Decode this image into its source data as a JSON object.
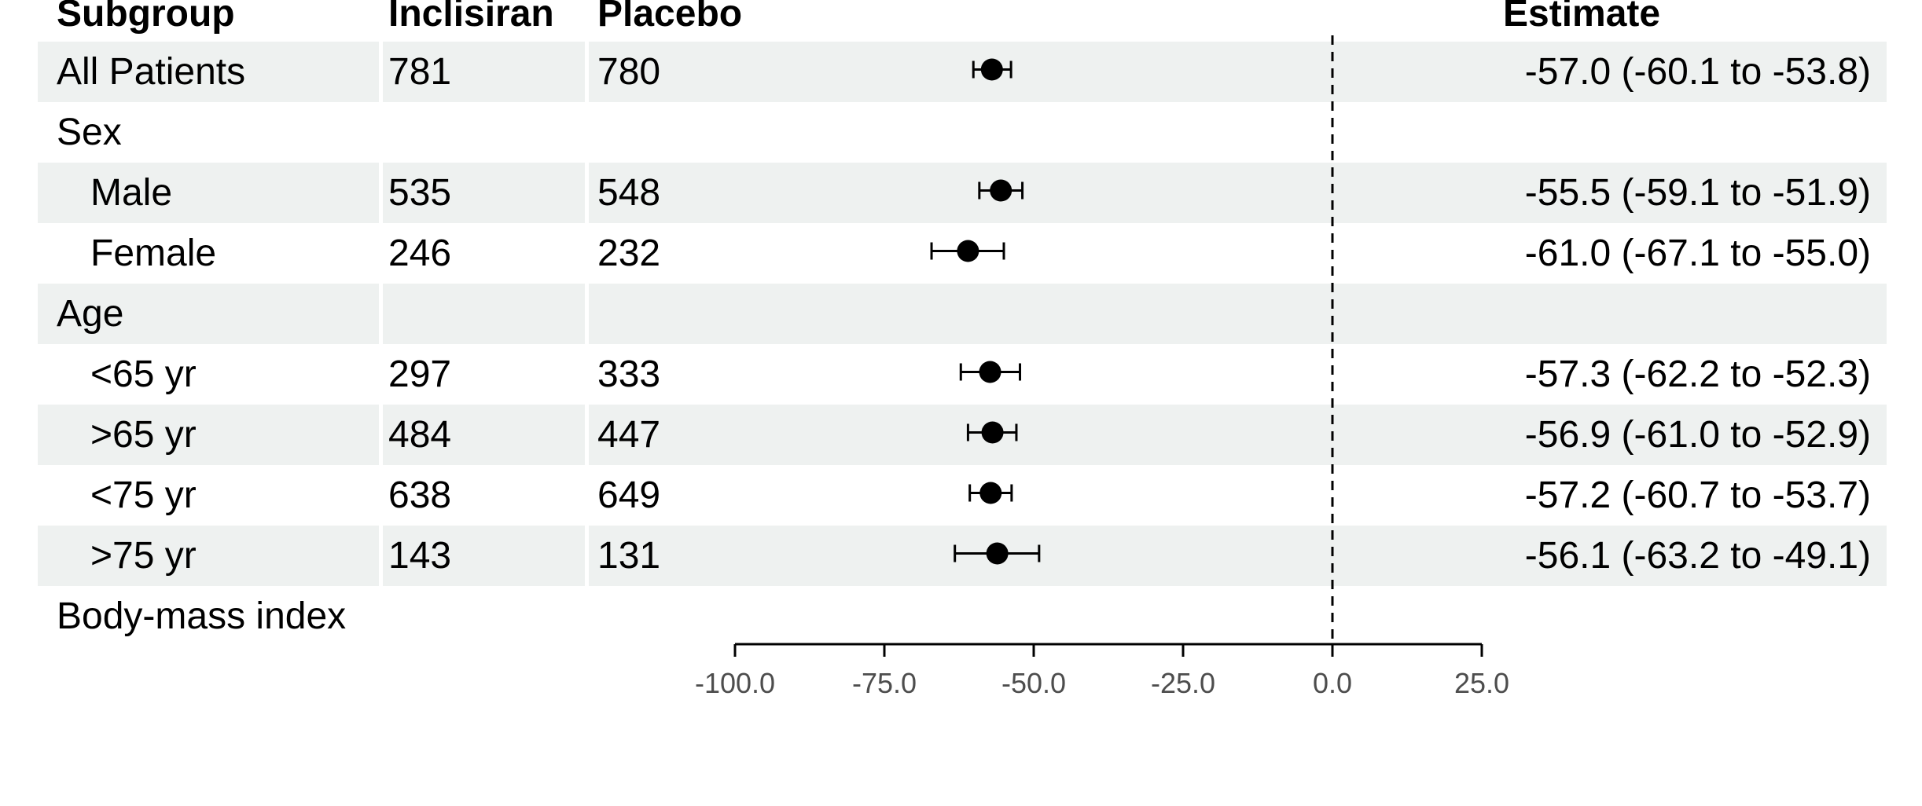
{
  "headers": {
    "subgroup": "Subgroup",
    "inclisiran": "Inclisiran",
    "placebo": "Placebo",
    "estimate": "Estimate"
  },
  "chart_data": {
    "type": "forest",
    "x_axis": {
      "ticks": [
        -100,
        -75,
        -50,
        -25,
        0,
        25
      ],
      "tick_labels": [
        "-100.0",
        "-75.0",
        "-50.0",
        "-25.0",
        "0.0",
        "25.0"
      ],
      "range": [
        -100,
        25
      ],
      "reference_line": 0
    },
    "rows": [
      {
        "label": "All Patients",
        "indent": false,
        "inclisiran": "781",
        "placebo": "780",
        "estimate": -57.0,
        "lower": -60.1,
        "upper": -53.8,
        "estimate_text": "-57.0 (-60.1 to -53.8)",
        "shaded": true
      },
      {
        "label": "Sex",
        "indent": false,
        "inclisiran": "",
        "placebo": "",
        "estimate": null,
        "lower": null,
        "upper": null,
        "estimate_text": "",
        "shaded": false
      },
      {
        "label": "Male",
        "indent": true,
        "inclisiran": "535",
        "placebo": "548",
        "estimate": -55.5,
        "lower": -59.1,
        "upper": -51.9,
        "estimate_text": "-55.5 (-59.1 to -51.9)",
        "shaded": true
      },
      {
        "label": "Female",
        "indent": true,
        "inclisiran": "246",
        "placebo": "232",
        "estimate": -61.0,
        "lower": -67.1,
        "upper": -55.0,
        "estimate_text": "-61.0 (-67.1 to -55.0)",
        "shaded": false
      },
      {
        "label": "Age",
        "indent": false,
        "inclisiran": "",
        "placebo": "",
        "estimate": null,
        "lower": null,
        "upper": null,
        "estimate_text": "",
        "shaded": true
      },
      {
        "label": "<65 yr",
        "indent": true,
        "inclisiran": "297",
        "placebo": "333",
        "estimate": -57.3,
        "lower": -62.2,
        "upper": -52.3,
        "estimate_text": "-57.3 (-62.2 to -52.3)",
        "shaded": false
      },
      {
        "label": ">65 yr",
        "indent": true,
        "inclisiran": "484",
        "placebo": "447",
        "estimate": -56.9,
        "lower": -61.0,
        "upper": -52.9,
        "estimate_text": "-56.9 (-61.0 to -52.9)",
        "shaded": true
      },
      {
        "label": "<75 yr",
        "indent": true,
        "inclisiran": "638",
        "placebo": "649",
        "estimate": -57.2,
        "lower": -60.7,
        "upper": -53.7,
        "estimate_text": "-57.2 (-60.7 to -53.7)",
        "shaded": false
      },
      {
        "label": ">75 yr",
        "indent": true,
        "inclisiran": "143",
        "placebo": "131",
        "estimate": -56.1,
        "lower": -63.2,
        "upper": -49.1,
        "estimate_text": "-56.1 (-63.2 to -49.1)",
        "shaded": true
      },
      {
        "label": "Body-mass index",
        "indent": false,
        "inclisiran": "",
        "placebo": "",
        "estimate": null,
        "lower": null,
        "upper": null,
        "estimate_text": "",
        "shaded": false
      }
    ]
  },
  "colors": {
    "band": "#eef1f0",
    "ink": "#000000",
    "tick_label": "#4d4d4d"
  }
}
